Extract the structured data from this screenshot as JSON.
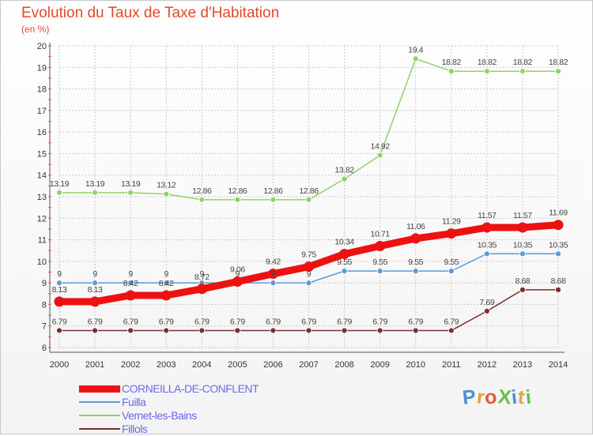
{
  "header": {
    "title": "Evolution du Taux de Taxe d'Habitation",
    "subtitle": "(en %)"
  },
  "logo": {
    "text": "ProXiti",
    "letter_colors": [
      "#4a90d9",
      "#e8a23a",
      "#e05a3a",
      "#6abf4b",
      "#4a90d9",
      "#e8a23a",
      "#6abf4b"
    ]
  },
  "chart_data": {
    "type": "line",
    "x": [
      "2000",
      "2001",
      "2002",
      "2003",
      "2004",
      "2005",
      "2006",
      "2007",
      "2008",
      "2009",
      "2010",
      "2011",
      "2012",
      "2013",
      "2014"
    ],
    "ylim": [
      6,
      20
    ],
    "yticks": [
      "6",
      "7",
      "8",
      "9",
      "10",
      "11",
      "12",
      "13",
      "14",
      "15",
      "16",
      "17",
      "18",
      "19",
      "20"
    ],
    "grid": true,
    "legend_position": "bottom-left",
    "series": [
      {
        "name": "CORNEILLA-DE-CONFLENT",
        "color": "#ee1111",
        "values": [
          8.13,
          8.13,
          8.42,
          8.42,
          8.72,
          9.06,
          9.42,
          9.75,
          10.34,
          10.71,
          11.06,
          11.29,
          11.57,
          11.57,
          11.69
        ],
        "labels": [
          "8.13",
          "8.13",
          "8.42",
          "8.42",
          "8.72",
          "9.06",
          "9.42",
          "9.75",
          "10.34",
          "10.71",
          "11.06",
          "11.29",
          "11.57",
          "11.57",
          "11.69"
        ]
      },
      {
        "name": "Fuilla",
        "color": "#5b9bd5",
        "values": [
          9,
          9,
          9,
          9,
          9,
          9,
          9,
          9,
          9.55,
          9.55,
          9.55,
          9.55,
          10.35,
          10.35,
          10.35
        ],
        "labels": [
          "9",
          "9",
          "9",
          "9",
          "9",
          "9",
          "9",
          "9",
          "9.55",
          "9.55",
          "9.55",
          "9.55",
          "10.35",
          "10.35",
          "10.35"
        ]
      },
      {
        "name": "Vernet-les-Bains",
        "color": "#8fd36a",
        "values": [
          13.19,
          13.19,
          13.19,
          13.12,
          12.86,
          12.86,
          12.86,
          12.86,
          13.82,
          14.92,
          19.4,
          18.82,
          18.82,
          18.82,
          18.82
        ],
        "labels": [
          "13.19",
          "13.19",
          "13.19",
          "13.12",
          "12.86",
          "12.86",
          "12.86",
          "12.86",
          "13.82",
          "14.92",
          "19.4",
          "18.82",
          "18.82",
          "18.82",
          "18.82"
        ]
      },
      {
        "name": "Fillols",
        "color": "#7a2e2e",
        "values": [
          6.79,
          6.79,
          6.79,
          6.79,
          6.79,
          6.79,
          6.79,
          6.79,
          6.79,
          6.79,
          6.79,
          6.79,
          7.69,
          8.68,
          8.68
        ],
        "labels": [
          "6.79",
          "6.79",
          "6.79",
          "6.79",
          "6.79",
          "6.79",
          "6.79",
          "6.79",
          "6.79",
          "6.79",
          "6.79",
          "6.79",
          "7.69",
          "8.68",
          "8.68"
        ]
      }
    ]
  }
}
